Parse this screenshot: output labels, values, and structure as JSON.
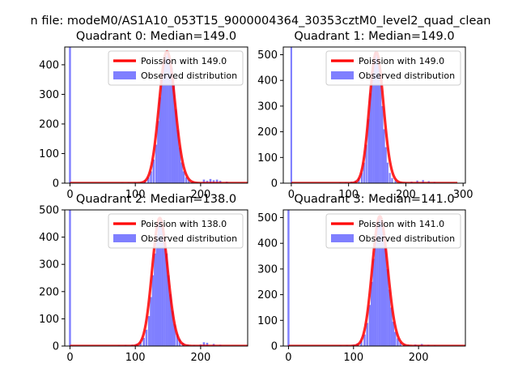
{
  "figure": {
    "suptitle": "n file: modeM0/AS1A10_053T15_9000004364_30353cztM0_level2_quad_clean"
  },
  "colors": {
    "hist": "#7f7fff",
    "curve": "#ff0000",
    "axes": "#000000",
    "background": "#ffffff"
  },
  "chart_data": [
    {
      "type": "bar",
      "title": "Quadrant 0: Median=149.0",
      "xlabel": "",
      "ylabel": "",
      "xlim": [
        -8,
        272
      ],
      "ylim": [
        0,
        460
      ],
      "xticks": [
        0,
        100,
        200
      ],
      "xtick_labels": [
        "0",
        "100",
        "200"
      ],
      "yticks": [
        0,
        100,
        200,
        300,
        400
      ],
      "ytick_labels": [
        "0",
        "100",
        "200",
        "300",
        "400"
      ],
      "legend": {
        "position": "upper-right",
        "entries": [
          "Poission with 149.0",
          "Observed distribution"
        ]
      },
      "poisson_mean": 149.0,
      "poisson_peak": 445,
      "zero_bar_value": 460,
      "hist_bins": [
        [
          80,
          2
        ],
        [
          90,
          3
        ],
        [
          100,
          4
        ],
        [
          110,
          5
        ],
        [
          115,
          10
        ],
        [
          120,
          20
        ],
        [
          124,
          40
        ],
        [
          128,
          80
        ],
        [
          132,
          130
        ],
        [
          135,
          210
        ],
        [
          138,
          290
        ],
        [
          141,
          350
        ],
        [
          144,
          400
        ],
        [
          147,
          430
        ],
        [
          150,
          440
        ],
        [
          153,
          420
        ],
        [
          156,
          390
        ],
        [
          159,
          330
        ],
        [
          162,
          250
        ],
        [
          165,
          180
        ],
        [
          168,
          120
        ],
        [
          171,
          70
        ],
        [
          174,
          40
        ],
        [
          178,
          20
        ],
        [
          182,
          10
        ],
        [
          188,
          5
        ],
        [
          195,
          3
        ],
        [
          205,
          12
        ],
        [
          210,
          8
        ],
        [
          215,
          14
        ],
        [
          220,
          10
        ],
        [
          225,
          12
        ],
        [
          230,
          8
        ],
        [
          240,
          5
        ]
      ]
    },
    {
      "type": "bar",
      "title": "Quadrant 1: Median=149.0",
      "xlabel": "",
      "ylabel": "",
      "xlim": [
        -14,
        304
      ],
      "ylim": [
        0,
        530
      ],
      "xticks": [
        0,
        100,
        200,
        300
      ],
      "xtick_labels": [
        "0",
        "100",
        "200",
        "300"
      ],
      "yticks": [
        0,
        100,
        200,
        300,
        400,
        500
      ],
      "ytick_labels": [
        "0",
        "100",
        "200",
        "300",
        "400",
        "500"
      ],
      "legend": {
        "position": "upper-right",
        "entries": [
          "Poission with 149.0",
          "Observed distribution"
        ]
      },
      "poisson_mean": 149.0,
      "poisson_peak": 510,
      "zero_bar_value": 530,
      "hist_bins": [
        [
          85,
          3
        ],
        [
          95,
          4
        ],
        [
          105,
          6
        ],
        [
          112,
          10
        ],
        [
          118,
          20
        ],
        [
          123,
          40
        ],
        [
          127,
          80
        ],
        [
          131,
          150
        ],
        [
          135,
          250
        ],
        [
          138,
          350
        ],
        [
          141,
          440
        ],
        [
          144,
          490
        ],
        [
          147,
          510
        ],
        [
          150,
          500
        ],
        [
          153,
          460
        ],
        [
          156,
          390
        ],
        [
          159,
          300
        ],
        [
          162,
          210
        ],
        [
          165,
          140
        ],
        [
          168,
          80
        ],
        [
          172,
          40
        ],
        [
          176,
          20
        ],
        [
          182,
          10
        ],
        [
          190,
          5
        ],
        [
          200,
          4
        ],
        [
          210,
          6
        ],
        [
          220,
          10
        ],
        [
          230,
          12
        ],
        [
          240,
          8
        ],
        [
          250,
          5
        ]
      ]
    },
    {
      "type": "bar",
      "title": "Quadrant 2: Median=138.0",
      "xlabel": "",
      "ylabel": "",
      "xlim": [
        -8,
        272
      ],
      "ylim": [
        0,
        500
      ],
      "xticks": [
        0,
        100,
        200
      ],
      "xtick_labels": [
        "0",
        "100",
        "200"
      ],
      "yticks": [
        0,
        100,
        200,
        300,
        400,
        500
      ],
      "ytick_labels": [
        "0",
        "100",
        "200",
        "300",
        "400",
        "500"
      ],
      "legend": {
        "position": "upper-right",
        "entries": [
          "Poission with 138.0",
          "Observed distribution"
        ]
      },
      "poisson_mean": 138.0,
      "poisson_peak": 470,
      "zero_bar_value": 500,
      "hist_bins": [
        [
          75,
          3
        ],
        [
          85,
          4
        ],
        [
          95,
          5
        ],
        [
          102,
          8
        ],
        [
          108,
          15
        ],
        [
          113,
          30
        ],
        [
          117,
          60
        ],
        [
          121,
          110
        ],
        [
          124,
          180
        ],
        [
          127,
          260
        ],
        [
          130,
          340
        ],
        [
          133,
          410
        ],
        [
          136,
          450
        ],
        [
          139,
          460
        ],
        [
          142,
          440
        ],
        [
          145,
          400
        ],
        [
          148,
          340
        ],
        [
          151,
          260
        ],
        [
          154,
          190
        ],
        [
          157,
          130
        ],
        [
          160,
          80
        ],
        [
          164,
          45
        ],
        [
          168,
          25
        ],
        [
          173,
          12
        ],
        [
          180,
          6
        ],
        [
          190,
          4
        ],
        [
          200,
          6
        ],
        [
          205,
          14
        ],
        [
          210,
          12
        ],
        [
          220,
          8
        ],
        [
          230,
          5
        ]
      ]
    },
    {
      "type": "bar",
      "title": "Quadrant 3: Median=141.0",
      "xlabel": "",
      "ylabel": "",
      "xlim": [
        -8,
        272
      ],
      "ylim": [
        0,
        530
      ],
      "xticks": [
        0,
        100,
        200
      ],
      "xtick_labels": [
        "0",
        "100",
        "200"
      ],
      "yticks": [
        0,
        100,
        200,
        300,
        400,
        500
      ],
      "ytick_labels": [
        "0",
        "100",
        "200",
        "300",
        "400",
        "500"
      ],
      "legend": {
        "position": "upper-right",
        "entries": [
          "Poission with 141.0",
          "Observed distribution"
        ]
      },
      "poisson_mean": 141.0,
      "poisson_peak": 505,
      "zero_bar_value": 530,
      "hist_bins": [
        [
          80,
          3
        ],
        [
          90,
          4
        ],
        [
          100,
          6
        ],
        [
          106,
          10
        ],
        [
          112,
          20
        ],
        [
          117,
          45
        ],
        [
          121,
          90
        ],
        [
          125,
          160
        ],
        [
          128,
          250
        ],
        [
          131,
          340
        ],
        [
          134,
          420
        ],
        [
          137,
          480
        ],
        [
          140,
          500
        ],
        [
          143,
          490
        ],
        [
          146,
          450
        ],
        [
          149,
          380
        ],
        [
          152,
          300
        ],
        [
          155,
          220
        ],
        [
          158,
          150
        ],
        [
          161,
          95
        ],
        [
          164,
          55
        ],
        [
          168,
          30
        ],
        [
          172,
          15
        ],
        [
          178,
          8
        ],
        [
          185,
          5
        ],
        [
          195,
          6
        ],
        [
          205,
          8
        ],
        [
          215,
          5
        ],
        [
          225,
          3
        ]
      ]
    }
  ]
}
